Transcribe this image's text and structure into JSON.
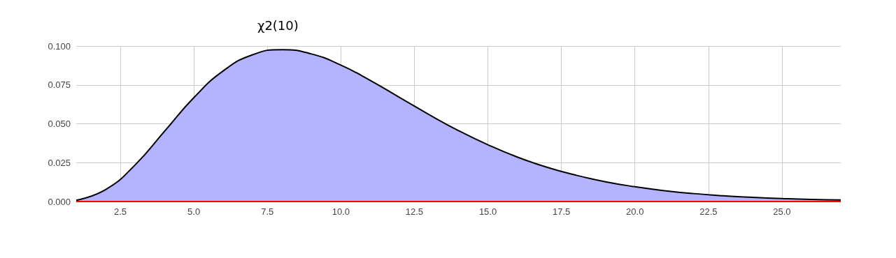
{
  "chart_data": {
    "type": "area",
    "title": "χ2(10)",
    "x": [
      1,
      2,
      3,
      4,
      5,
      6,
      7,
      8,
      9,
      10,
      11,
      12,
      13,
      14,
      15,
      16,
      17,
      18,
      19,
      20,
      21,
      22,
      23,
      24,
      25,
      26,
      27
    ],
    "series": [
      {
        "color": "#b3b3ff",
        "values": [
          0.0008,
          0.0077,
          0.0235,
          0.0451,
          0.0668,
          0.084,
          0.0944,
          0.0977,
          0.0949,
          0.0877,
          0.0779,
          0.0669,
          0.0559,
          0.0456,
          0.0365,
          0.0286,
          0.0221,
          0.0169,
          0.0127,
          0.0095,
          0.007,
          0.0051,
          0.0037,
          0.0027,
          0.0019,
          0.0013,
          0.001
        ]
      },
      {
        "type": "line",
        "color": "#ff0000",
        "values": [
          0,
          0,
          0,
          0,
          0,
          0,
          0,
          0,
          0,
          0,
          0,
          0,
          0,
          0,
          0,
          0,
          0,
          0,
          0,
          0,
          0,
          0,
          0,
          0,
          0,
          0,
          0
        ]
      }
    ],
    "xlim": [
      1,
      27
    ],
    "xticks": [
      2.5,
      {
        "value": 5,
        "label": "5.0"
      },
      7.5,
      {
        "value": 10,
        "label": "10.0"
      },
      12.5,
      {
        "value": 15,
        "label": "15.0"
      },
      17.5,
      {
        "value": 20,
        "label": "20.0"
      },
      22.5,
      {
        "value": 25,
        "label": "25.0"
      }
    ],
    "ylim": [
      0,
      0.1
    ],
    "yticks": [
      {
        "value": 0,
        "label": "0.000"
      },
      {
        "value": 0.025,
        "label": "0.025"
      },
      {
        "value": 0.05,
        "label": "0.050"
      },
      {
        "value": 0.075,
        "label": "0.075"
      },
      {
        "value": 0.1,
        "label": "0.100"
      }
    ],
    "grid": true
  }
}
